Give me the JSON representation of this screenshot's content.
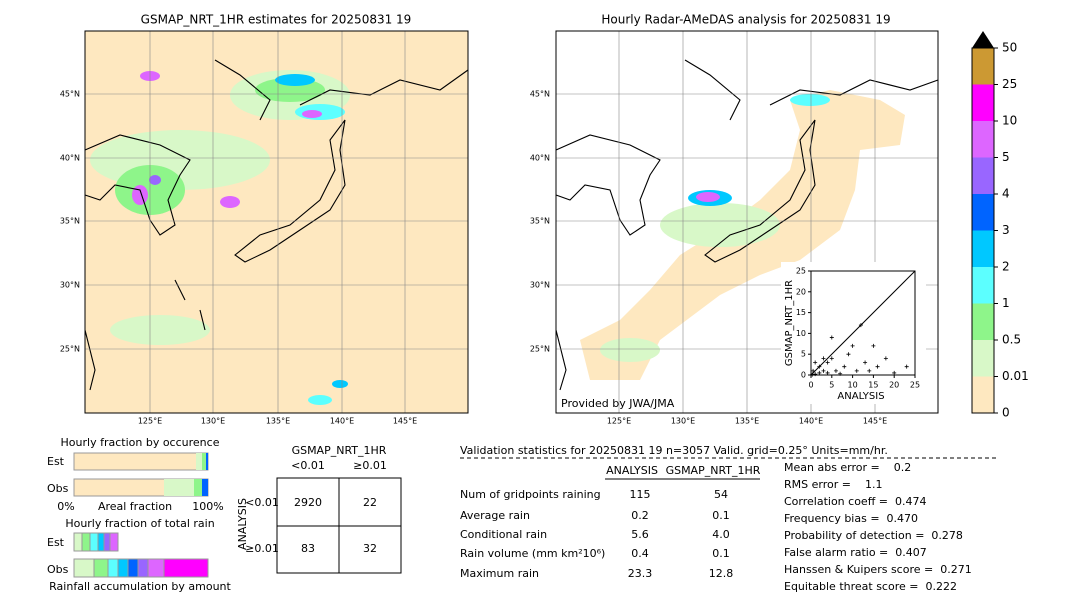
{
  "left_map": {
    "title": "GSMAP_NRT_1HR estimates for 20250831 19",
    "lat_labels": [
      "45°N",
      "40°N",
      "35°N",
      "30°N",
      "25°N"
    ],
    "lon_labels": [
      "125°E",
      "130°E",
      "135°E",
      "140°E",
      "145°E"
    ]
  },
  "right_map": {
    "title": "Hourly Radar-AMeDAS analysis for 20250831 19",
    "lat_labels": [
      "45°N",
      "40°N",
      "35°N",
      "30°N",
      "25°N"
    ],
    "lon_labels": [
      "125°E",
      "130°E",
      "135°E",
      "140°E",
      "145°E"
    ],
    "credit": "Provided by JWA/JMA"
  },
  "colorbar": {
    "ticks": [
      0,
      0.01,
      0.5,
      1,
      2,
      3,
      4,
      5,
      10,
      25,
      50
    ],
    "colors": [
      "#fee8c0",
      "#d8f8c8",
      "#8ef58a",
      "#5cffff",
      "#00c8ff",
      "#0064ff",
      "#9966ff",
      "#dd66ff",
      "#ff00ff",
      "#cc9933"
    ]
  },
  "chart_data": {
    "type": "scatter",
    "xlabel": "ANALYSIS",
    "ylabel": "GSMAP_NRT_1HR",
    "x": [
      0.5,
      1,
      2,
      3,
      4,
      5,
      2,
      1,
      3,
      5,
      9,
      10,
      12,
      13,
      15,
      16,
      18,
      23,
      8,
      6,
      4,
      11,
      0.3,
      7,
      14,
      20
    ],
    "y": [
      1,
      3,
      2,
      4,
      3,
      4,
      0.5,
      0.2,
      1,
      9,
      5,
      7,
      12,
      3,
      7,
      2,
      4,
      2,
      2,
      1,
      0.5,
      1,
      0.1,
      0.3,
      1,
      0.5
    ],
    "xlim": [
      0,
      25
    ],
    "ylim": [
      0,
      25
    ],
    "xticks": [
      0,
      5,
      10,
      15,
      20,
      25
    ],
    "yticks": [
      0,
      5,
      10,
      15,
      20,
      25
    ],
    "color": "#000000"
  },
  "fraction_panel": {
    "occurrence_title": "Hourly fraction by occurence",
    "rows": [
      "Est",
      "Obs"
    ],
    "axis_labels": [
      "0%",
      "Areal fraction",
      "100%"
    ],
    "total_title": "Hourly fraction of total rain",
    "total_rows": [
      "Est",
      "Obs"
    ],
    "footer": "Rainfall accumulation by amount"
  },
  "contingency": {
    "col_title": "GSMAP_NRT_1HR",
    "col_labels": [
      "<0.01",
      "≥0.01"
    ],
    "row_title": "ANALYSIS",
    "row_labels": [
      "<0.01",
      "≥0.01"
    ],
    "cells": [
      [
        "2920",
        "22"
      ],
      [
        "83",
        "32"
      ]
    ]
  },
  "validation": {
    "header": "Validation statistics for 20250831 19  n=3057 Valid. grid=0.25° Units=mm/hr.",
    "columns": [
      "ANALYSIS",
      "GSMAP_NRT_1HR"
    ],
    "rows": [
      {
        "label": "Num of gridpoints raining",
        "values": [
          "115",
          "54"
        ]
      },
      {
        "label": "Average rain",
        "values": [
          "0.2",
          "0.1"
        ]
      },
      {
        "label": "Conditional rain",
        "values": [
          "5.6",
          "4.0"
        ]
      },
      {
        "label": "Rain volume (mm km²10⁶)",
        "values": [
          "0.4",
          "0.1"
        ]
      },
      {
        "label": "Maximum rain",
        "values": [
          "23.3",
          "12.8"
        ]
      }
    ],
    "scores": [
      "Mean abs error =    0.2",
      "RMS error =    1.1",
      "Correlation coeff =  0.474",
      "Frequency bias =  0.470",
      "Probability of detection =  0.278",
      "False alarm ratio =  0.407",
      "Hanssen & Kuipers score =  0.271",
      "Equitable threat score =  0.222"
    ]
  }
}
